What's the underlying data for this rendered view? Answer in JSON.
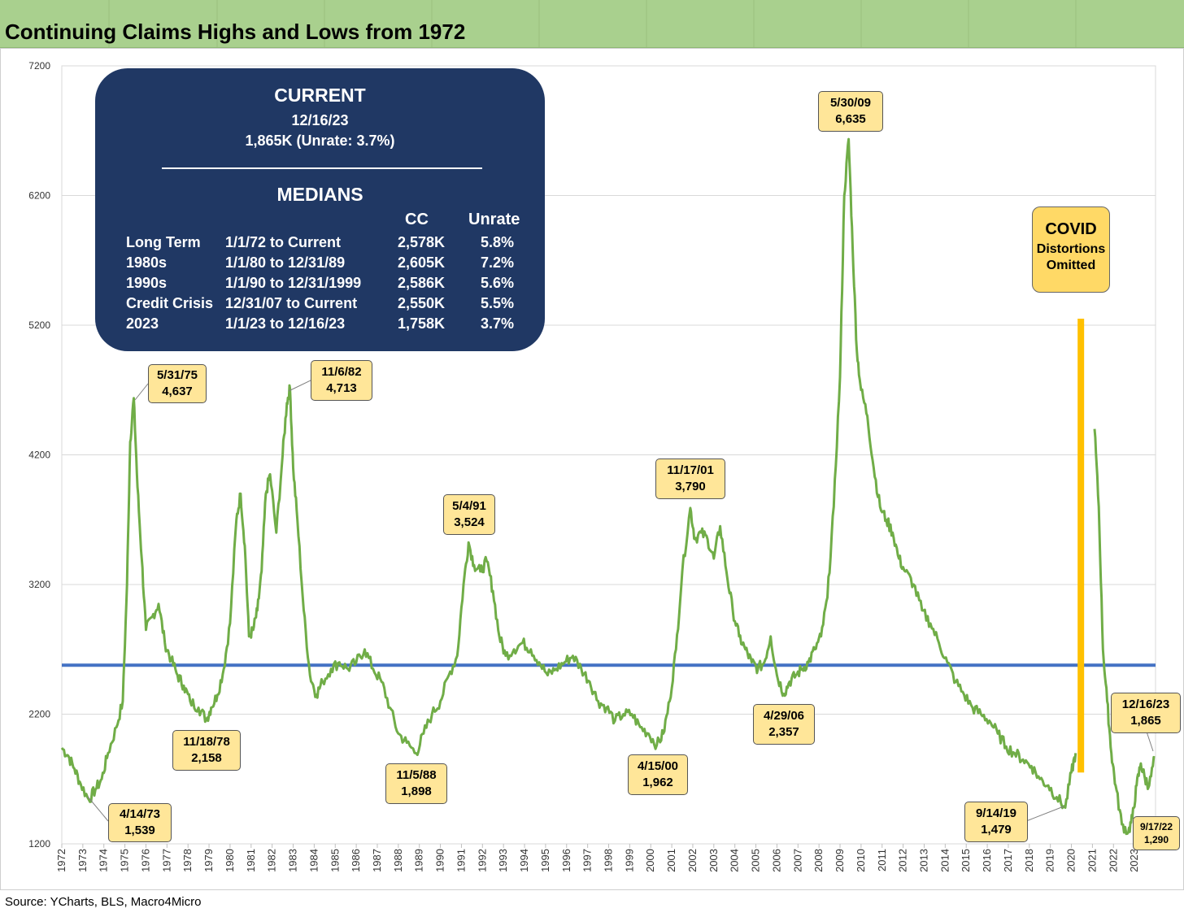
{
  "title": "Continuing Claims Highs and Lows from 1972",
  "source": "Source: YCharts, BLS, Macro4Micro",
  "current_box": {
    "heading": "CURRENT",
    "date": "12/16/23",
    "value_line": "1,865K (Unrate: 3.7%)",
    "medians_heading": "MEDIANS",
    "col_cc": "CC",
    "col_unrate": "Unrate",
    "rows": [
      {
        "label": "Long Term",
        "period": "1/1/72 to Current",
        "cc": "2,578K",
        "unrate": "5.8%"
      },
      {
        "label": "1980s",
        "period": "1/1/80 to 12/31/89",
        "cc": "2,605K",
        "unrate": "7.2%"
      },
      {
        "label": "1990s",
        "period": "1/1/90 to 12/31/1999",
        "cc": "2,586K",
        "unrate": "5.6%"
      },
      {
        "label": "Credit Crisis",
        "period": "12/31/07 to Current",
        "cc": "2,550K",
        "unrate": "5.5%"
      },
      {
        "label": "2023",
        "period": "1/1/23 to 12/16/23",
        "cc": "1,758K",
        "unrate": "3.7%"
      }
    ]
  },
  "covid_note": {
    "line1": "COVID",
    "line2": "Distortions",
    "line3": "Omitted"
  },
  "callouts": [
    {
      "date": "5/31/75",
      "value": "4,637"
    },
    {
      "date": "4/14/73",
      "value": "1,539"
    },
    {
      "date": "11/18/78",
      "value": "2,158"
    },
    {
      "date": "11/6/82",
      "value": "4,713"
    },
    {
      "date": "11/5/88",
      "value": "1,898"
    },
    {
      "date": "5/4/91",
      "value": "3,524"
    },
    {
      "date": "4/15/00",
      "value": "1,962"
    },
    {
      "date": "11/17/01",
      "value": "3,790"
    },
    {
      "date": "4/29/06",
      "value": "2,357"
    },
    {
      "date": "5/30/09",
      "value": "6,635"
    },
    {
      "date": "9/14/19",
      "value": "1,479"
    },
    {
      "date": "9/17/22",
      "value": "1,290"
    },
    {
      "date": "12/16/23",
      "value": "1,865"
    }
  ],
  "chart_data": {
    "type": "line",
    "title": "Continuing Claims Highs and Lows from 1972",
    "ylim": [
      1200,
      7200
    ],
    "yticks": [
      1200,
      2200,
      3200,
      4200,
      5200,
      6200,
      7200
    ],
    "xlim": [
      1972,
      2024
    ],
    "xticks": [
      "1972",
      "1973",
      "1974",
      "1975",
      "1976",
      "1977",
      "1978",
      "1979",
      "1980",
      "1981",
      "1982",
      "1983",
      "1984",
      "1985",
      "1986",
      "1987",
      "1988",
      "1989",
      "1990",
      "1991",
      "1992",
      "1993",
      "1994",
      "1995",
      "1996",
      "1997",
      "1998",
      "1999",
      "2000",
      "2001",
      "2002",
      "2003",
      "2004",
      "2005",
      "2006",
      "2007",
      "2008",
      "2009",
      "2010",
      "2011",
      "2012",
      "2013",
      "2014",
      "2015",
      "2016",
      "2017",
      "2018",
      "2019",
      "2020",
      "2021",
      "2022",
      "2023"
    ],
    "grid": true,
    "colors": {
      "series": "#70ad47",
      "median": "#4472c4",
      "covid_bar": "#ffc000",
      "box": "#203864",
      "callout": "#ffe699"
    },
    "median_line": {
      "value": 2578
    },
    "covid_bar": {
      "x": 2020.45,
      "y_top": 5250,
      "y_bottom": 1750
    },
    "series": [
      {
        "segments": [
          {
            "x": [
              1972.0,
              1972.3,
              1972.6,
              1972.9,
              1973.29,
              1973.6,
              1973.9,
              1974.2,
              1974.6,
              1974.9,
              1975.1,
              1975.25,
              1975.42,
              1975.6,
              1975.8,
              1976.0,
              1976.3,
              1976.6,
              1976.9,
              1977.2,
              1977.5,
              1977.8,
              1978.1,
              1978.5,
              1978.88,
              1979.1,
              1979.4,
              1979.7,
              1980.0,
              1980.3,
              1980.5,
              1980.7,
              1980.9,
              1981.1,
              1981.3,
              1981.5,
              1981.7,
              1981.9,
              1982.2,
              1982.5,
              1982.7,
              1982.85,
              1983.0,
              1983.2,
              1983.5,
              1983.8,
              1984.1,
              1984.4,
              1984.8,
              1985.2,
              1985.6,
              1986.0,
              1986.4,
              1986.8,
              1987.2,
              1987.6,
              1988.0,
              1988.4,
              1988.85,
              1989.2,
              1989.6,
              1990.0,
              1990.4,
              1990.8,
              1991.1,
              1991.34,
              1991.6,
              1991.9,
              1992.2,
              1992.5,
              1992.8,
              1993.1,
              1993.5,
              1993.9,
              1994.3,
              1994.7,
              1995.1,
              1995.5,
              1995.9,
              1996.3,
              1996.7,
              1997.1,
              1997.5,
              1997.9,
              1998.3,
              1998.7,
              1999.1,
              1999.5,
              1999.9,
              2000.29,
              2000.6,
              2000.9,
              2001.2,
              2001.5,
              2001.88,
              2002.1,
              2002.4,
              2002.7,
              2003.0,
              2003.3,
              2003.6,
              2003.9,
              2004.2,
              2004.5,
              2004.8,
              2005.1,
              2005.4,
              2005.7,
              2006.0,
              2006.33,
              2006.6,
              2006.9,
              2007.2,
              2007.5,
              2007.8,
              2008.1,
              2008.4,
              2008.7,
              2009.0,
              2009.2,
              2009.41,
              2009.6,
              2009.8,
              2010.0,
              2010.3,
              2010.6,
              2010.9,
              2011.2,
              2011.5,
              2011.8,
              2012.1,
              2012.5,
              2012.9,
              2013.3,
              2013.7,
              2014.1,
              2014.5,
              2014.9,
              2015.3,
              2015.7,
              2016.1,
              2016.5,
              2016.9,
              2017.3,
              2017.7,
              2018.1,
              2018.5,
              2018.9,
              2019.3,
              2019.71,
              2020.0,
              2020.2
            ],
            "y": [
              1940,
              1880,
              1780,
              1660,
              1539,
              1620,
              1700,
              1900,
              2100,
              2300,
              3200,
              4300,
              4637,
              3950,
              3400,
              2850,
              2950,
              3050,
              2750,
              2620,
              2500,
              2420,
              2300,
              2250,
              2158,
              2250,
              2350,
              2550,
              2900,
              3700,
              3900,
              3500,
              2800,
              2850,
              3000,
              3300,
              3900,
              4050,
              3600,
              4200,
              4600,
              4713,
              4100,
              3700,
              3000,
              2500,
              2350,
              2450,
              2550,
              2600,
              2550,
              2600,
              2700,
              2550,
              2450,
              2250,
              2050,
              1980,
              1898,
              2050,
              2200,
              2300,
              2500,
              2650,
              3200,
              3524,
              3350,
              3300,
              3380,
              3150,
              2800,
              2650,
              2700,
              2750,
              2700,
              2600,
              2500,
              2550,
              2600,
              2650,
              2550,
              2450,
              2300,
              2250,
              2150,
              2200,
              2200,
              2100,
              2050,
              1962,
              2050,
              2300,
              2700,
              3300,
              3790,
              3550,
              3600,
              3550,
              3400,
              3650,
              3300,
              3000,
              2800,
              2700,
              2600,
              2550,
              2600,
              2800,
              2500,
              2357,
              2450,
              2500,
              2550,
              2600,
              2700,
              2800,
              3100,
              3800,
              4800,
              6200,
              6635,
              5800,
              5000,
              4700,
              4500,
              4100,
              3800,
              3700,
              3600,
              3400,
              3300,
              3200,
              3000,
              2900,
              2750,
              2600,
              2450,
              2350,
              2250,
              2200,
              2150,
              2050,
              1950,
              1900,
              1850,
              1800,
              1700,
              1650,
              1560,
              1479,
              1750,
              1900
            ]
          },
          {
            "x": [
              2021.1,
              2021.3,
              2021.5,
              2021.7,
              2021.9,
              2022.1,
              2022.4,
              2022.71,
              2022.9,
              2023.1,
              2023.3,
              2023.5,
              2023.7,
              2023.96
            ],
            "y": [
              4400,
              3800,
              2700,
              2300,
              1900,
              1650,
              1350,
              1290,
              1400,
              1650,
              1820,
              1700,
              1650,
              1865
            ]
          }
        ]
      }
    ]
  }
}
